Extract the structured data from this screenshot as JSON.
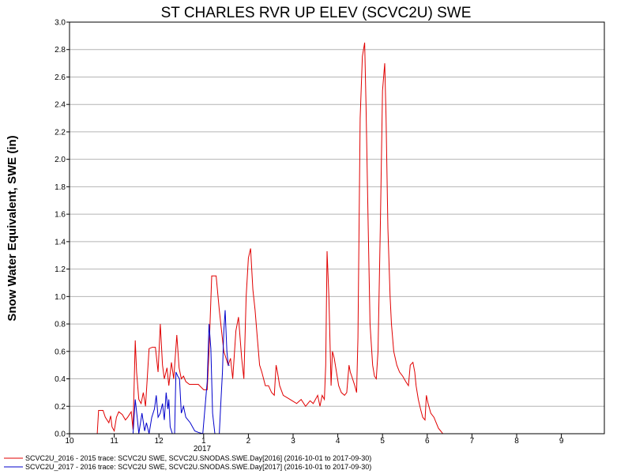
{
  "chart_data": {
    "type": "line",
    "title": "ST CHARLES RVR UP ELEV (SCVC2U) SWE",
    "ylabel": "Snow Water Equivalent, SWE (in)",
    "xlabel": "",
    "year_label": "2017",
    "ylim": [
      0,
      3.0
    ],
    "y_ticks": [
      "0.0",
      "0.2",
      "0.4",
      "0.6",
      "0.8",
      "1.0",
      "1.2",
      "1.4",
      "1.6",
      "1.8",
      "2.0",
      "2.2",
      "2.4",
      "2.6",
      "2.8",
      "3.0"
    ],
    "x_ticks": [
      "10",
      "11",
      "12",
      "1",
      "2",
      "3",
      "4",
      "5",
      "6",
      "7",
      "8",
      "9"
    ],
    "grid": true,
    "legend_position": "bottom",
    "series": [
      {
        "name": "SCVC2U_2016 - 2015 trace: SCVC2U SWE, SCVC2U.SNODAS.SWE.Day[2016] (2016-10-01 to 2017-09-30)",
        "color": "#e00000",
        "points": [
          [
            0.62,
            0
          ],
          [
            0.65,
            0.17
          ],
          [
            0.75,
            0.17
          ],
          [
            0.8,
            0.12
          ],
          [
            0.88,
            0.08
          ],
          [
            0.92,
            0.13
          ],
          [
            0.95,
            0.05
          ],
          [
            1.0,
            0.02
          ],
          [
            1.05,
            0.12
          ],
          [
            1.1,
            0.16
          ],
          [
            1.18,
            0.14
          ],
          [
            1.25,
            0.1
          ],
          [
            1.3,
            0.12
          ],
          [
            1.38,
            0.16
          ],
          [
            1.42,
            0.03
          ],
          [
            1.47,
            0.68
          ],
          [
            1.5,
            0.45
          ],
          [
            1.55,
            0.25
          ],
          [
            1.6,
            0.22
          ],
          [
            1.65,
            0.3
          ],
          [
            1.7,
            0.2
          ],
          [
            1.78,
            0.62
          ],
          [
            1.85,
            0.63
          ],
          [
            1.92,
            0.63
          ],
          [
            1.98,
            0.45
          ],
          [
            2.03,
            0.8
          ],
          [
            2.08,
            0.5
          ],
          [
            2.12,
            0.4
          ],
          [
            2.18,
            0.48
          ],
          [
            2.22,
            0.35
          ],
          [
            2.28,
            0.52
          ],
          [
            2.33,
            0.4
          ],
          [
            2.4,
            0.72
          ],
          [
            2.45,
            0.48
          ],
          [
            2.5,
            0.4
          ],
          [
            2.55,
            0.42
          ],
          [
            2.6,
            0.38
          ],
          [
            2.68,
            0.36
          ],
          [
            2.78,
            0.36
          ],
          [
            2.88,
            0.36
          ],
          [
            3.0,
            0.32
          ],
          [
            3.08,
            0.32
          ],
          [
            3.12,
            0.6
          ],
          [
            3.18,
            1.15
          ],
          [
            3.28,
            1.15
          ],
          [
            3.35,
            0.9
          ],
          [
            3.45,
            0.6
          ],
          [
            3.55,
            0.5
          ],
          [
            3.6,
            0.55
          ],
          [
            3.65,
            0.4
          ],
          [
            3.72,
            0.75
          ],
          [
            3.78,
            0.85
          ],
          [
            3.85,
            0.55
          ],
          [
            3.9,
            0.4
          ],
          [
            3.95,
            1.0
          ],
          [
            4.0,
            1.28
          ],
          [
            4.05,
            1.35
          ],
          [
            4.1,
            1.05
          ],
          [
            4.15,
            0.9
          ],
          [
            4.2,
            0.7
          ],
          [
            4.25,
            0.5
          ],
          [
            4.3,
            0.45
          ],
          [
            4.38,
            0.35
          ],
          [
            4.45,
            0.35
          ],
          [
            4.52,
            0.3
          ],
          [
            4.58,
            0.28
          ],
          [
            4.62,
            0.5
          ],
          [
            4.65,
            0.45
          ],
          [
            4.7,
            0.35
          ],
          [
            4.78,
            0.28
          ],
          [
            4.88,
            0.26
          ],
          [
            4.98,
            0.24
          ],
          [
            5.08,
            0.22
          ],
          [
            5.18,
            0.25
          ],
          [
            5.28,
            0.2
          ],
          [
            5.38,
            0.24
          ],
          [
            5.45,
            0.22
          ],
          [
            5.55,
            0.28
          ],
          [
            5.6,
            0.2
          ],
          [
            5.65,
            0.28
          ],
          [
            5.7,
            0.25
          ],
          [
            5.73,
            0.5
          ],
          [
            5.76,
            1.33
          ],
          [
            5.8,
            1.0
          ],
          [
            5.85,
            0.35
          ],
          [
            5.88,
            0.6
          ],
          [
            5.92,
            0.55
          ],
          [
            5.97,
            0.45
          ],
          [
            6.02,
            0.35
          ],
          [
            6.08,
            0.3
          ],
          [
            6.15,
            0.28
          ],
          [
            6.2,
            0.3
          ],
          [
            6.25,
            0.5
          ],
          [
            6.28,
            0.45
          ],
          [
            6.33,
            0.4
          ],
          [
            6.38,
            0.35
          ],
          [
            6.42,
            0.3
          ],
          [
            6.45,
            0.7
          ],
          [
            6.5,
            2.3
          ],
          [
            6.55,
            2.75
          ],
          [
            6.6,
            2.85
          ],
          [
            6.63,
            2.4
          ],
          [
            6.68,
            1.5
          ],
          [
            6.72,
            0.8
          ],
          [
            6.78,
            0.5
          ],
          [
            6.82,
            0.42
          ],
          [
            6.86,
            0.4
          ],
          [
            6.9,
            0.6
          ],
          [
            6.95,
            1.5
          ],
          [
            7.0,
            2.5
          ],
          [
            7.05,
            2.7
          ],
          [
            7.08,
            2.3
          ],
          [
            7.12,
            1.5
          ],
          [
            7.17,
            1.0
          ],
          [
            7.2,
            0.8
          ],
          [
            7.25,
            0.6
          ],
          [
            7.32,
            0.5
          ],
          [
            7.38,
            0.45
          ],
          [
            7.45,
            0.42
          ],
          [
            7.52,
            0.38
          ],
          [
            7.58,
            0.35
          ],
          [
            7.62,
            0.5
          ],
          [
            7.68,
            0.52
          ],
          [
            7.72,
            0.45
          ],
          [
            7.75,
            0.35
          ],
          [
            7.8,
            0.25
          ],
          [
            7.85,
            0.18
          ],
          [
            7.9,
            0.12
          ],
          [
            7.95,
            0.1
          ],
          [
            7.98,
            0.28
          ],
          [
            8.02,
            0.22
          ],
          [
            8.08,
            0.15
          ],
          [
            8.15,
            0.12
          ],
          [
            8.2,
            0.08
          ],
          [
            8.25,
            0.04
          ],
          [
            8.3,
            0.02
          ],
          [
            8.35,
            0.0
          ]
        ]
      },
      {
        "name": "SCVC2U_2017 - 2016 trace: SCVC2U SWE, SCVC2U.SNODAS.SWE.Day[2017] (2016-10-01 to 2017-09-30)",
        "color": "#0000cc",
        "points": [
          [
            1.42,
            0
          ],
          [
            1.47,
            0.25
          ],
          [
            1.52,
            0.1
          ],
          [
            1.55,
            0.0
          ],
          [
            1.62,
            0.15
          ],
          [
            1.68,
            0.02
          ],
          [
            1.72,
            0.08
          ],
          [
            1.78,
            0.0
          ],
          [
            1.84,
            0.12
          ],
          [
            1.9,
            0.18
          ],
          [
            1.94,
            0.28
          ],
          [
            1.98,
            0.12
          ],
          [
            2.03,
            0.15
          ],
          [
            2.08,
            0.22
          ],
          [
            2.12,
            0.1
          ],
          [
            2.16,
            0.3
          ],
          [
            2.2,
            0.18
          ],
          [
            2.22,
            0.25
          ],
          [
            2.25,
            0.05
          ],
          [
            2.3,
            0.0
          ],
          [
            2.35,
            0.0
          ],
          [
            2.38,
            0.45
          ],
          [
            2.42,
            0.42
          ],
          [
            2.46,
            0.4
          ],
          [
            2.5,
            0.15
          ],
          [
            2.55,
            0.2
          ],
          [
            2.6,
            0.12
          ],
          [
            2.7,
            0.08
          ],
          [
            2.8,
            0.02
          ],
          [
            2.88,
            0.01
          ],
          [
            2.98,
            0.0
          ],
          [
            3.08,
            0.38
          ],
          [
            3.12,
            0.8
          ],
          [
            3.16,
            0.62
          ],
          [
            3.2,
            0.15
          ],
          [
            3.25,
            0.0
          ],
          [
            3.35,
            0.0
          ],
          [
            3.38,
            0.2
          ],
          [
            3.42,
            0.45
          ],
          [
            3.45,
            0.75
          ],
          [
            3.48,
            0.9
          ],
          [
            3.52,
            0.6
          ],
          [
            3.55,
            0.5
          ],
          [
            3.58,
            0.5
          ]
        ]
      }
    ]
  }
}
